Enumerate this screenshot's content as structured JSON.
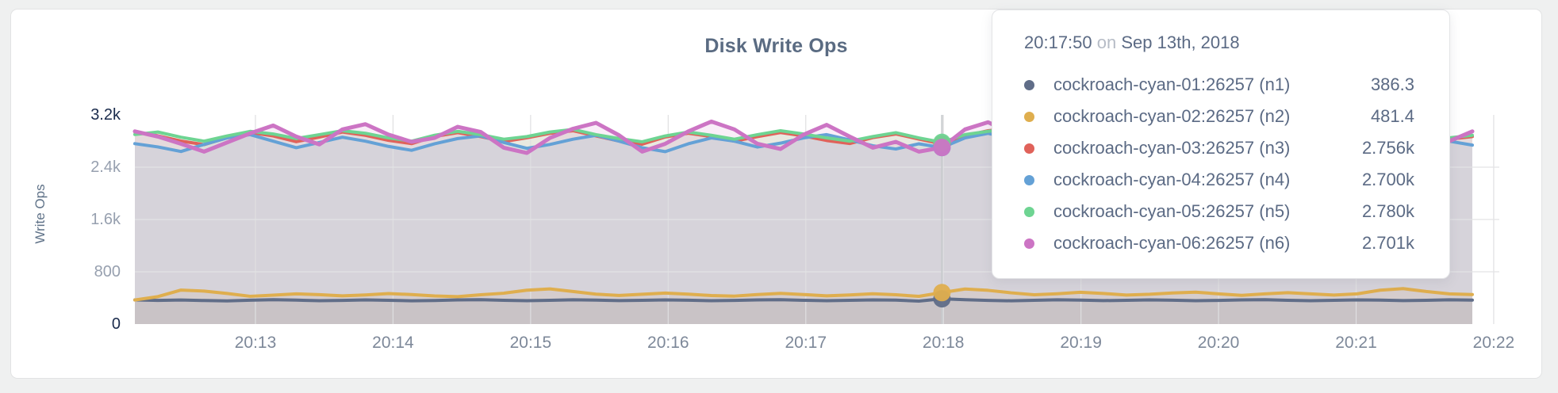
{
  "window": {
    "background": "#eff0f0",
    "card_background": "#ffffff"
  },
  "chart": {
    "title": "Disk Write Ops",
    "y_axis_label": "Write Ops"
  },
  "tooltip": {
    "time": "20:17:50",
    "preposition": "on",
    "date": "Sep 13th, 2018",
    "rows": [
      {
        "name": "cockroach-cyan-01:26257 (n1)",
        "value": "386.3",
        "color": "#606d88"
      },
      {
        "name": "cockroach-cyan-02:26257 (n2)",
        "value": "481.4",
        "color": "#dfae4e"
      },
      {
        "name": "cockroach-cyan-03:26257 (n3)",
        "value": "2.756k",
        "color": "#e0625a"
      },
      {
        "name": "cockroach-cyan-04:26257 (n4)",
        "value": "2.700k",
        "color": "#64a1d6"
      },
      {
        "name": "cockroach-cyan-05:26257 (n5)",
        "value": "2.780k",
        "color": "#6ed492"
      },
      {
        "name": "cockroach-cyan-06:26257 (n6)",
        "value": "2.701k",
        "color": "#cc74c4"
      }
    ]
  },
  "chart_data": {
    "type": "line",
    "title": "Disk Write Ops",
    "xlabel": "",
    "ylabel": "Write Ops",
    "ylim": [
      0,
      3200
    ],
    "grid": true,
    "legend_position": "tooltip",
    "sample_interval_seconds": 10,
    "x_ticks": [
      "20:13",
      "20:14",
      "20:15",
      "20:16",
      "20:17",
      "20:18",
      "20:19",
      "20:20",
      "20:21",
      "20:22"
    ],
    "y_ticks": [
      {
        "label": "3.2k",
        "value": 3200,
        "major": true,
        "grid": false
      },
      {
        "label": "2.4k",
        "value": 2400,
        "major": false,
        "grid": true
      },
      {
        "label": "1.6k",
        "value": 1600,
        "major": false,
        "grid": true
      },
      {
        "label": "800",
        "value": 800,
        "major": false,
        "grid": true
      },
      {
        "label": "0",
        "value": 0,
        "major": true,
        "grid": false
      }
    ],
    "hover_index": 35,
    "hover_time": "20:17:50",
    "hover_date": "Sep 13th, 2018",
    "series": [
      {
        "name": "cockroach-cyan-01:26257 (n1)",
        "color": "#606d88",
        "hover_value": 386.3,
        "values": [
          370,
          362,
          368,
          360,
          355,
          365,
          372,
          366,
          358,
          362,
          370,
          364,
          356,
          361,
          369,
          373,
          363,
          357,
          364,
          371,
          366,
          359,
          363,
          370,
          365,
          357,
          362,
          369,
          372,
          364,
          357,
          363,
          370,
          366,
          352,
          386.3,
          372,
          362,
          356,
          364,
          371,
          367,
          359,
          363,
          370,
          365,
          357,
          362,
          369,
          373,
          364,
          358,
          363,
          370,
          366,
          359,
          364,
          371,
          367
        ]
      },
      {
        "name": "cockroach-cyan-02:26257 (n2)",
        "color": "#dfae4e",
        "hover_value": 481.4,
        "values": [
          368,
          420,
          520,
          505,
          468,
          425,
          442,
          462,
          450,
          432,
          446,
          466,
          452,
          430,
          420,
          448,
          472,
          518,
          538,
          498,
          458,
          438,
          456,
          474,
          458,
          436,
          428,
          452,
          470,
          452,
          432,
          446,
          464,
          448,
          424,
          481.4,
          536,
          516,
          478,
          448,
          464,
          486,
          468,
          444,
          456,
          476,
          488,
          462,
          440,
          462,
          480,
          462,
          444,
          462,
          518,
          542,
          498,
          462,
          452
        ]
      },
      {
        "name": "cockroach-cyan-03:26257 (n3)",
        "color": "#e0625a",
        "hover_value": 2756,
        "values": [
          2940,
          2880,
          2800,
          2745,
          2850,
          2930,
          2878,
          2790,
          2860,
          2938,
          2888,
          2810,
          2760,
          2870,
          2928,
          2868,
          2792,
          2850,
          2918,
          2958,
          2878,
          2800,
          2752,
          2862,
          2920,
          2868,
          2798,
          2868,
          2930,
          2878,
          2808,
          2762,
          2852,
          2908,
          2830,
          2756,
          2880,
          2958,
          2998,
          2898,
          2828,
          2878,
          2938,
          2868,
          2798,
          2858,
          2928,
          2888,
          2818,
          2858,
          2918,
          2878,
          2808,
          2848,
          2908,
          2948,
          2888,
          2828,
          2868
        ]
      },
      {
        "name": "cockroach-cyan-04:26257 (n4)",
        "color": "#64a1d6",
        "hover_value": 2700,
        "values": [
          2760,
          2710,
          2640,
          2748,
          2848,
          2898,
          2798,
          2698,
          2778,
          2858,
          2798,
          2718,
          2658,
          2758,
          2838,
          2878,
          2778,
          2688,
          2748,
          2828,
          2888,
          2798,
          2698,
          2638,
          2758,
          2848,
          2798,
          2708,
          2768,
          2848,
          2898,
          2818,
          2728,
          2678,
          2758,
          2700,
          2848,
          2918,
          2838,
          2738,
          2688,
          2778,
          2858,
          2798,
          2718,
          2768,
          2848,
          2888,
          2798,
          2728,
          2778,
          2858,
          2818,
          2738,
          2698,
          2778,
          2848,
          2798,
          2738
        ]
      },
      {
        "name": "cockroach-cyan-05:26257 (n5)",
        "color": "#6ed492",
        "hover_value": 2780,
        "values": [
          2900,
          2938,
          2858,
          2798,
          2878,
          2948,
          2908,
          2838,
          2898,
          2958,
          2918,
          2848,
          2798,
          2888,
          2948,
          2898,
          2828,
          2868,
          2938,
          2978,
          2898,
          2838,
          2788,
          2878,
          2938,
          2888,
          2828,
          2898,
          2958,
          2908,
          2848,
          2798,
          2868,
          2928,
          2848,
          2780,
          2898,
          2948,
          2998,
          2918,
          2858,
          2898,
          2948,
          2878,
          2818,
          2888,
          2938,
          2898,
          2838,
          2878,
          2928,
          2888,
          2828,
          2868,
          2918,
          2958,
          2898,
          2848,
          2888
        ]
      },
      {
        "name": "cockroach-cyan-06:26257 (n6)",
        "color": "#cc74c4",
        "hover_value": 2701,
        "values": [
          2948,
          2868,
          2758,
          2638,
          2778,
          2918,
          3038,
          2868,
          2748,
          2978,
          3058,
          2898,
          2788,
          2848,
          3018,
          2938,
          2698,
          2618,
          2848,
          2988,
          3078,
          2888,
          2638,
          2758,
          2948,
          3098,
          2978,
          2758,
          2678,
          2898,
          3048,
          2868,
          2698,
          2788,
          2638,
          2701,
          2978,
          3088,
          2918,
          2758,
          2848,
          3008,
          2888,
          2648,
          2778,
          2958,
          3068,
          2898,
          2738,
          2818,
          2978,
          2858,
          2698,
          2908,
          3028,
          2868,
          2718,
          2798,
          2948
        ]
      }
    ]
  }
}
